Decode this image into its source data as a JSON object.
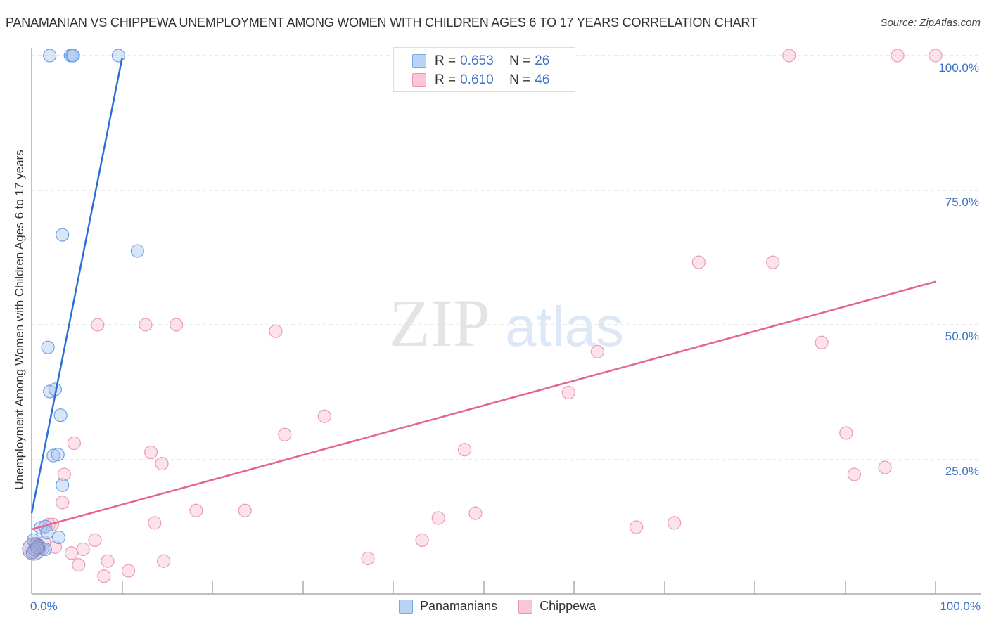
{
  "header": {
    "title": "PANAMANIAN VS CHIPPEWA UNEMPLOYMENT AMONG WOMEN WITH CHILDREN AGES 6 TO 17 YEARS CORRELATION CHART",
    "source": "Source: ZipAtlas.com"
  },
  "watermark": {
    "zip": "ZIP",
    "atlas": "atlas"
  },
  "legend": {
    "rows": [
      {
        "r_label": "R =",
        "r_value": "0.653",
        "n_label": "N =",
        "n_value": "26",
        "color": "#b8d3f5"
      },
      {
        "r_label": "R =",
        "r_value": "0.610",
        "n_label": "N =",
        "n_value": "46",
        "color": "#f9c6d6"
      }
    ]
  },
  "axes": {
    "ylabel": "Unemployment Among Women with Children Ages 6 to 17 years",
    "yticks": [
      "100.0%",
      "75.0%",
      "50.0%",
      "25.0%"
    ],
    "xticks": [
      "0.0%",
      "100.0%"
    ]
  },
  "bottom_legend": {
    "items": [
      {
        "label": "Panamanians",
        "color": "#b8d3f5"
      },
      {
        "label": "Chippewa",
        "color": "#f9c6d6"
      }
    ]
  },
  "chart_data": {
    "type": "scatter",
    "title": "PANAMANIAN VS CHIPPEWA UNEMPLOYMENT AMONG WOMEN WITH CHILDREN AGES 6 TO 17 YEARS CORRELATION CHART",
    "xlabel": "",
    "ylabel": "Unemployment Among Women with Children Ages 6 to 17 years",
    "xlim": [
      0,
      100
    ],
    "ylim": [
      0,
      100
    ],
    "x_tick_labels": [
      "0.0%",
      "100.0%"
    ],
    "y_tick_labels": [
      "25.0%",
      "50.0%",
      "75.0%",
      "100.0%"
    ],
    "grid": true,
    "legend_position": "bottom",
    "series": [
      {
        "name": "Panamanians",
        "color": "#4a86e0",
        "R": 0.653,
        "N": 26,
        "trendline": {
          "x": [
            0,
            10
          ],
          "y": [
            15.0,
            99.5
          ]
        },
        "points": [
          {
            "x": 2.0,
            "y": 100
          },
          {
            "x": 4.3,
            "y": 100
          },
          {
            "x": 4.5,
            "y": 100
          },
          {
            "x": 4.6,
            "y": 100
          },
          {
            "x": 9.6,
            "y": 100
          },
          {
            "x": 3.4,
            "y": 66.7
          },
          {
            "x": 11.7,
            "y": 63.7
          },
          {
            "x": 1.8,
            "y": 45.8
          },
          {
            "x": 2.0,
            "y": 37.6
          },
          {
            "x": 2.6,
            "y": 38.0
          },
          {
            "x": 3.2,
            "y": 33.2
          },
          {
            "x": 2.4,
            "y": 25.7
          },
          {
            "x": 2.9,
            "y": 25.9
          },
          {
            "x": 3.4,
            "y": 20.2
          },
          {
            "x": 1.0,
            "y": 12.3
          },
          {
            "x": 1.5,
            "y": 12.5
          },
          {
            "x": 1.7,
            "y": 11.4
          },
          {
            "x": 3.0,
            "y": 10.5
          },
          {
            "x": 0.2,
            "y": 10.0
          },
          {
            "x": 0.5,
            "y": 9.3
          },
          {
            "x": 0.8,
            "y": 9.0
          },
          {
            "x": 1.2,
            "y": 8.4
          },
          {
            "x": 1.5,
            "y": 8.3
          },
          {
            "x": 0.3,
            "y": 8.2
          },
          {
            "x": 0.1,
            "y": 7.7
          },
          {
            "x": 0.6,
            "y": 8.6
          }
        ]
      },
      {
        "name": "Chippewa",
        "color": "#e86b96",
        "R": 0.61,
        "N": 46,
        "trendline": {
          "x": [
            0,
            100
          ],
          "y": [
            12.0,
            58.0
          ]
        },
        "points": [
          {
            "x": 83.8,
            "y": 100
          },
          {
            "x": 95.8,
            "y": 100
          },
          {
            "x": 100.0,
            "y": 100
          },
          {
            "x": 73.8,
            "y": 61.6
          },
          {
            "x": 82.0,
            "y": 61.6
          },
          {
            "x": 7.3,
            "y": 50.0
          },
          {
            "x": 12.6,
            "y": 50.0
          },
          {
            "x": 16.0,
            "y": 50.0
          },
          {
            "x": 27.0,
            "y": 48.8
          },
          {
            "x": 87.4,
            "y": 46.7
          },
          {
            "x": 62.6,
            "y": 45.0
          },
          {
            "x": 59.4,
            "y": 37.4
          },
          {
            "x": 32.4,
            "y": 33.0
          },
          {
            "x": 28.0,
            "y": 29.6
          },
          {
            "x": 90.1,
            "y": 29.9
          },
          {
            "x": 4.7,
            "y": 28.0
          },
          {
            "x": 47.9,
            "y": 26.8
          },
          {
            "x": 13.2,
            "y": 26.3
          },
          {
            "x": 14.4,
            "y": 24.2
          },
          {
            "x": 94.4,
            "y": 23.5
          },
          {
            "x": 91.0,
            "y": 22.2
          },
          {
            "x": 3.6,
            "y": 22.2
          },
          {
            "x": 3.4,
            "y": 17.0
          },
          {
            "x": 18.2,
            "y": 15.5
          },
          {
            "x": 23.6,
            "y": 15.5
          },
          {
            "x": 49.1,
            "y": 15.0
          },
          {
            "x": 45.0,
            "y": 14.1
          },
          {
            "x": 13.6,
            "y": 13.2
          },
          {
            "x": 66.9,
            "y": 12.4
          },
          {
            "x": 71.1,
            "y": 13.2
          },
          {
            "x": 1.9,
            "y": 12.9
          },
          {
            "x": 2.3,
            "y": 12.9
          },
          {
            "x": 7.0,
            "y": 10.0
          },
          {
            "x": 43.2,
            "y": 10.0
          },
          {
            "x": 2.6,
            "y": 8.7
          },
          {
            "x": 5.7,
            "y": 8.3
          },
          {
            "x": 4.4,
            "y": 7.6
          },
          {
            "x": 37.2,
            "y": 6.6
          },
          {
            "x": 8.4,
            "y": 6.1
          },
          {
            "x": 14.6,
            "y": 6.1
          },
          {
            "x": 5.2,
            "y": 5.4
          },
          {
            "x": 10.7,
            "y": 4.3
          },
          {
            "x": 8.0,
            "y": 3.3
          },
          {
            "x": 0.6,
            "y": 9.0
          },
          {
            "x": 1.0,
            "y": 8.6
          },
          {
            "x": 1.4,
            "y": 9.6
          }
        ]
      }
    ]
  }
}
